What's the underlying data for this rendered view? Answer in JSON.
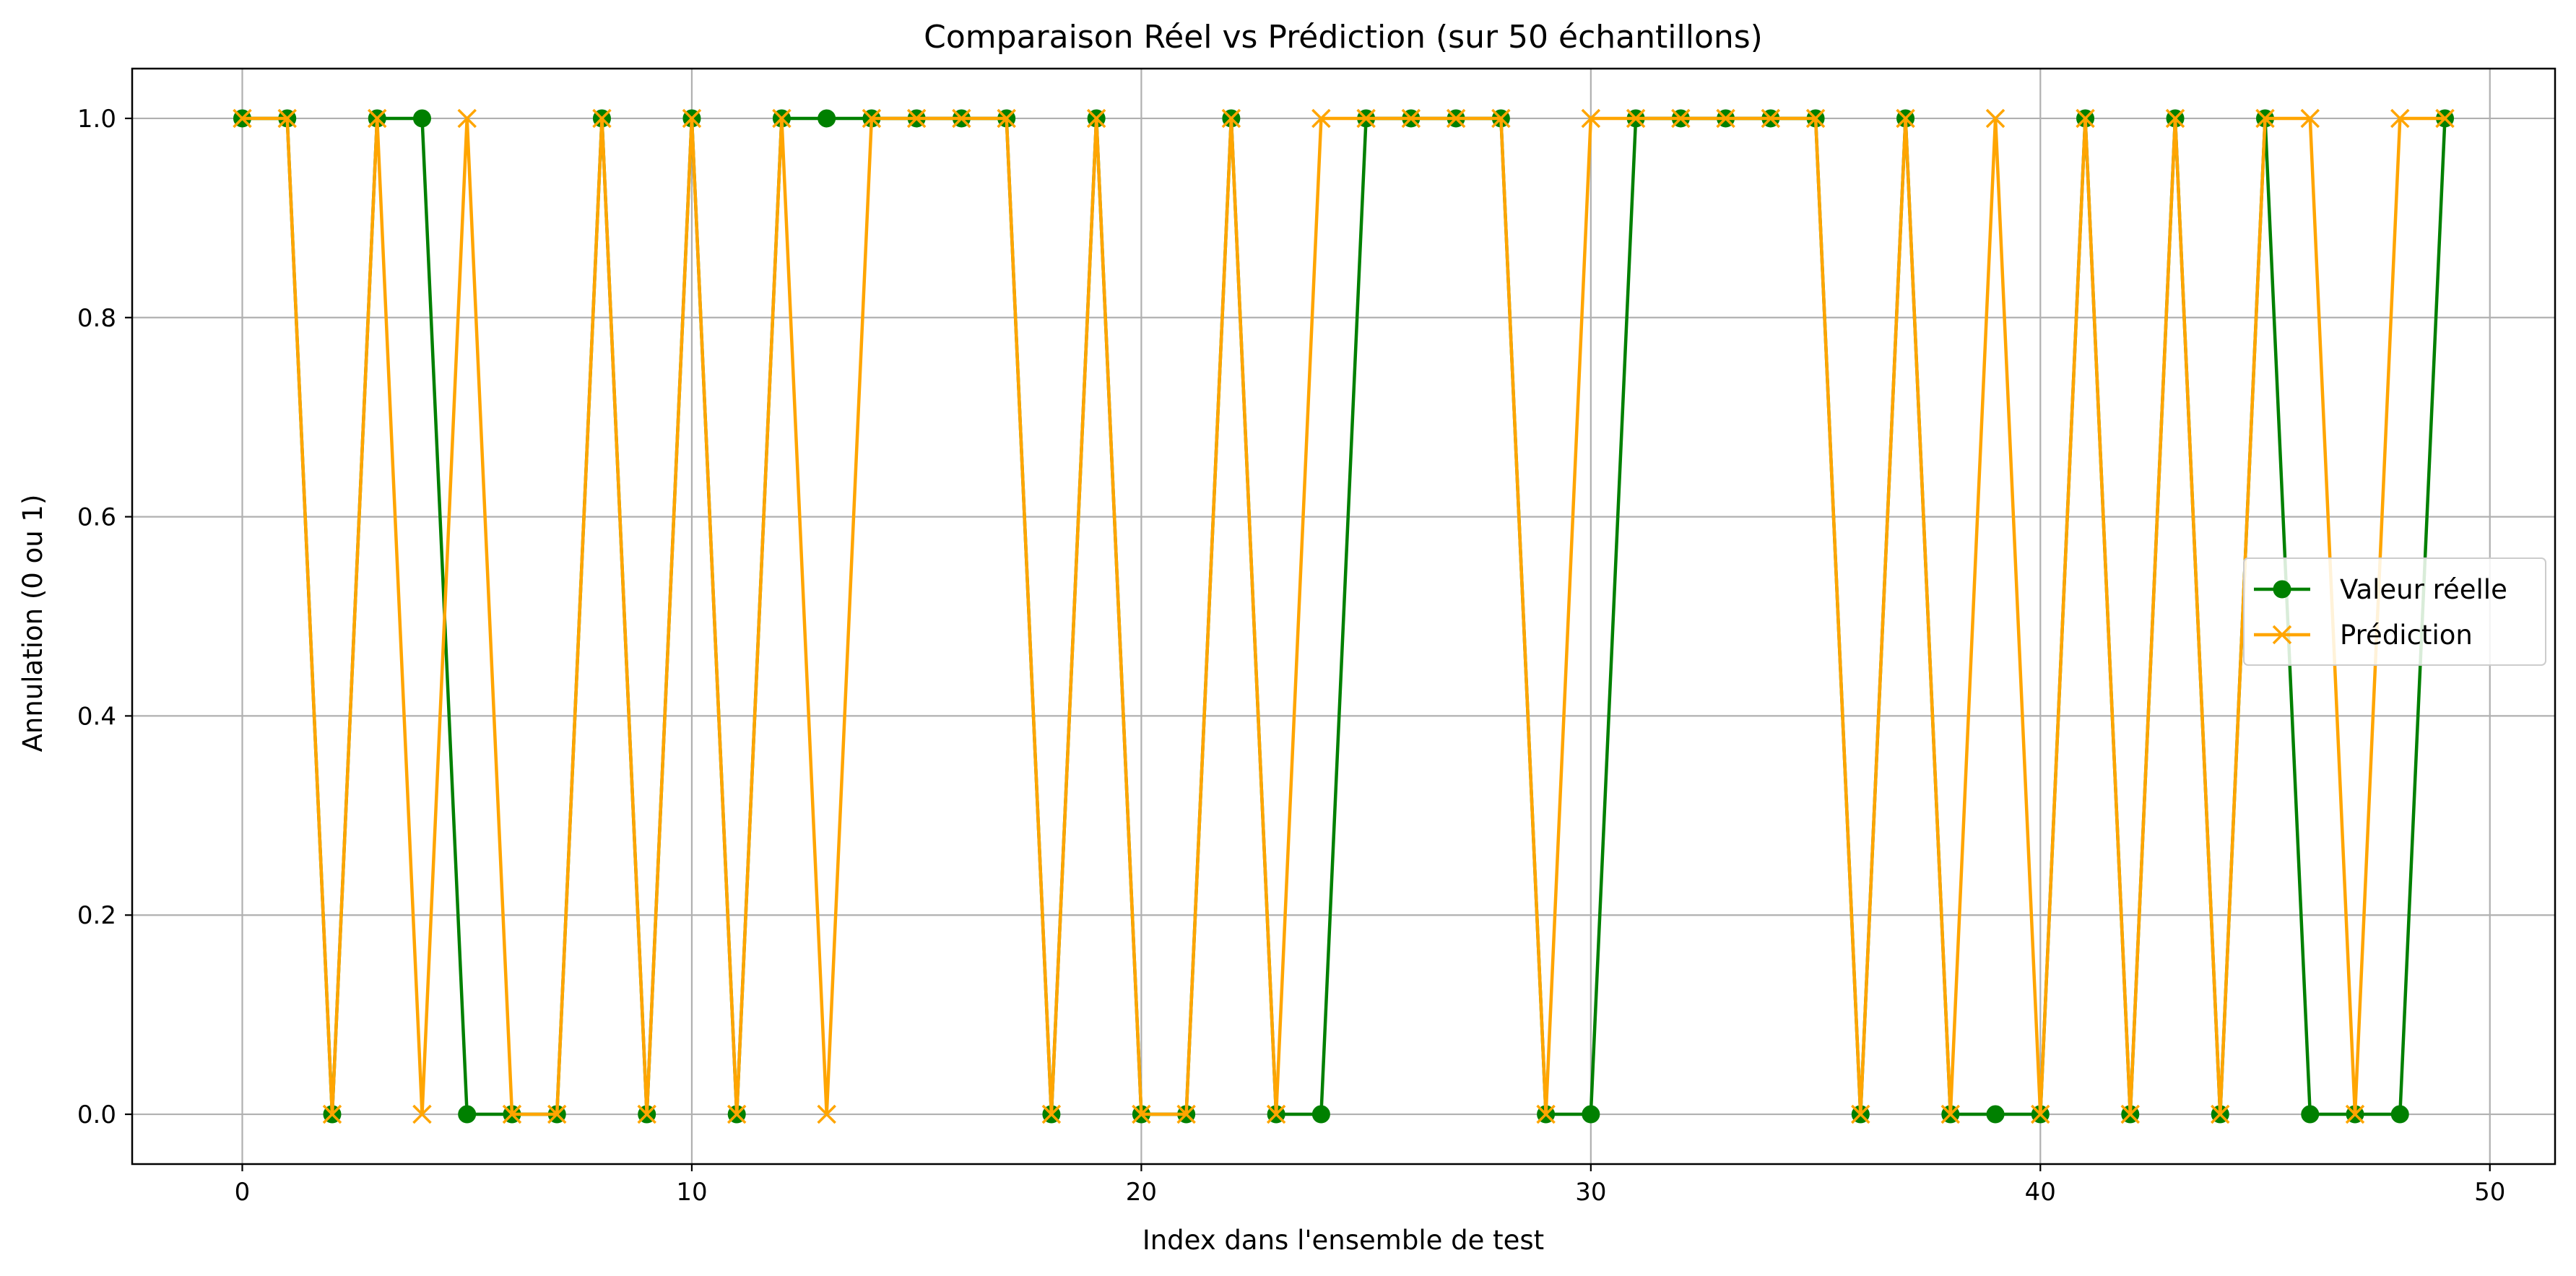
{
  "chart_data": {
    "type": "line",
    "title": "Comparaison Réel vs Prédiction (sur 50 échantillons)",
    "xlabel": "Index dans l'ensemble de test",
    "ylabel": "Annulation (0 ou 1)",
    "xlim": [
      -2.45,
      51.45
    ],
    "ylim": [
      -0.05,
      1.05
    ],
    "x_ticks": [
      0,
      10,
      20,
      30,
      40,
      50
    ],
    "y_ticks": [
      0.0,
      0.2,
      0.4,
      0.6,
      0.8,
      1.0
    ],
    "x_tick_labels": [
      "0",
      "10",
      "20",
      "30",
      "40",
      "50"
    ],
    "y_tick_labels": [
      "0.0",
      "0.2",
      "0.4",
      "0.6",
      "0.8",
      "1.0"
    ],
    "grid": true,
    "legend_position": "center-right",
    "x": [
      0,
      1,
      2,
      3,
      4,
      5,
      6,
      7,
      8,
      9,
      10,
      11,
      12,
      13,
      14,
      15,
      16,
      17,
      18,
      19,
      20,
      21,
      22,
      23,
      24,
      25,
      26,
      27,
      28,
      29,
      30,
      31,
      32,
      33,
      34,
      35,
      36,
      37,
      38,
      39,
      40,
      41,
      42,
      43,
      44,
      45,
      46,
      47,
      48,
      49
    ],
    "series": [
      {
        "name": "Valeur réelle",
        "color": "#008000",
        "marker": "circle",
        "values": [
          1,
          1,
          0,
          1,
          1,
          0,
          0,
          0,
          1,
          0,
          1,
          0,
          1,
          1,
          1,
          1,
          1,
          1,
          0,
          1,
          0,
          0,
          1,
          0,
          0,
          1,
          1,
          1,
          1,
          0,
          0,
          1,
          1,
          1,
          1,
          1,
          0,
          1,
          0,
          0,
          0,
          1,
          0,
          1,
          0,
          1,
          0,
          0,
          0,
          1
        ]
      },
      {
        "name": "Prédiction",
        "color": "#ffa500",
        "marker": "x",
        "values": [
          1,
          1,
          0,
          1,
          0,
          1,
          0,
          0,
          1,
          0,
          1,
          0,
          1,
          0,
          1,
          1,
          1,
          1,
          0,
          1,
          0,
          0,
          1,
          0,
          1,
          1,
          1,
          1,
          1,
          0,
          1,
          1,
          1,
          1,
          1,
          1,
          0,
          1,
          0,
          1,
          0,
          1,
          0,
          1,
          0,
          1,
          1,
          0,
          1,
          1
        ]
      }
    ]
  }
}
